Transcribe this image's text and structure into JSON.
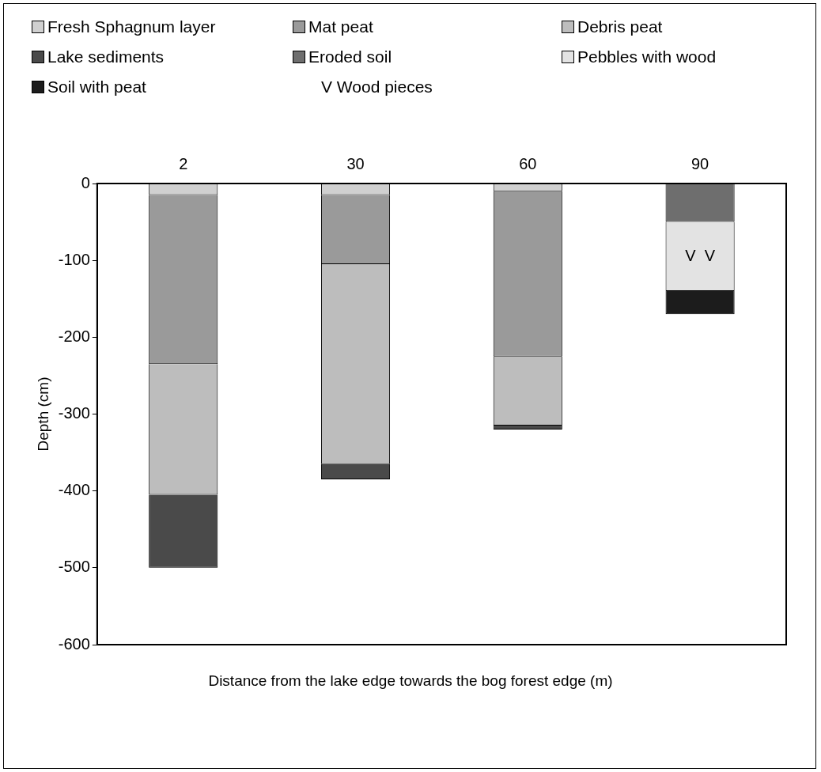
{
  "chart_data": {
    "type": "bar",
    "stacked": true,
    "xlabel": "Distance from the lake edge towards the bog forest edge (m)",
    "ylabel": "Depth (cm)",
    "categories": [
      "2",
      "30",
      "60",
      "90"
    ],
    "series": [
      {
        "name": "Fresh Sphagnum layer",
        "color": "#d0d0d0",
        "values": [
          -15,
          -15,
          -10,
          null
        ]
      },
      {
        "name": "Mat peat",
        "color": "#9a9a9a",
        "values": [
          -220,
          -90,
          -215,
          null
        ]
      },
      {
        "name": "Debris peat",
        "color": "#bdbdbd",
        "values": [
          -170,
          -260,
          -90,
          null
        ]
      },
      {
        "name": "Lake sediments",
        "color": "#4a4a4a",
        "values": [
          -95,
          -20,
          -5,
          null
        ]
      },
      {
        "name": "Eroded soil",
        "color": "#6e6e6e",
        "values": [
          null,
          null,
          null,
          -50
        ]
      },
      {
        "name": "Pebbles with wood",
        "color": "#e3e3e3",
        "values": [
          null,
          null,
          null,
          -90
        ]
      },
      {
        "name": "Soil with peat",
        "color": "#1c1c1c",
        "values": [
          null,
          null,
          null,
          -30
        ]
      }
    ],
    "ylim": [
      -600,
      0
    ],
    "yticks": [
      -600,
      -500,
      -400,
      -300,
      -200,
      -100,
      0
    ],
    "grid": false,
    "legend": "top",
    "annotations": [
      "V Wood pieces",
      "V  V"
    ]
  }
}
